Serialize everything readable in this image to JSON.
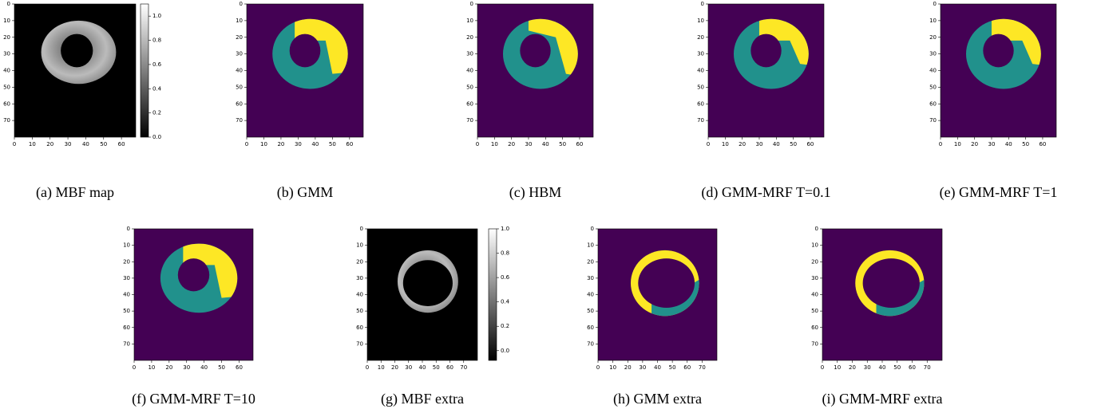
{
  "panels": [
    {
      "caption": "(a) MBF map",
      "xticks": [
        "0",
        "10",
        "20",
        "30",
        "40",
        "50",
        "60"
      ],
      "yticks": [
        "0",
        "10",
        "20",
        "30",
        "40",
        "50",
        "60",
        "70"
      ],
      "colorbar": [
        "0.0",
        "0.2",
        "0.4",
        "0.6",
        "0.8",
        "1.0"
      ]
    },
    {
      "caption": "(b) GMM",
      "xticks": [
        "0",
        "10",
        "20",
        "30",
        "40",
        "50",
        "60"
      ],
      "yticks": [
        "0",
        "10",
        "20",
        "30",
        "40",
        "50",
        "60",
        "70"
      ]
    },
    {
      "caption": "(c) HBM",
      "xticks": [
        "0",
        "10",
        "20",
        "30",
        "40",
        "50",
        "60"
      ],
      "yticks": [
        "0",
        "10",
        "20",
        "30",
        "40",
        "50",
        "60",
        "70"
      ]
    },
    {
      "caption": "(d) GMM-MRF T=0.1",
      "xticks": [
        "0",
        "10",
        "20",
        "30",
        "40",
        "50",
        "60"
      ],
      "yticks": [
        "0",
        "10",
        "20",
        "30",
        "40",
        "50",
        "60",
        "70"
      ]
    },
    {
      "caption": "(e) GMM-MRF T=1",
      "xticks": [
        "0",
        "10",
        "20",
        "30",
        "40",
        "50",
        "60"
      ],
      "yticks": [
        "0",
        "10",
        "20",
        "30",
        "40",
        "50",
        "60",
        "70"
      ]
    },
    {
      "caption": "(f) GMM-MRF T=10",
      "xticks": [
        "0",
        "10",
        "20",
        "30",
        "40",
        "50",
        "60"
      ],
      "yticks": [
        "0",
        "10",
        "20",
        "30",
        "40",
        "50",
        "60",
        "70"
      ]
    },
    {
      "caption": "(g) MBF extra",
      "xticks": [
        "0",
        "10",
        "20",
        "30",
        "40",
        "50",
        "60",
        "70"
      ],
      "yticks": [
        "0",
        "10",
        "20",
        "30",
        "40",
        "50",
        "60",
        "70"
      ],
      "colorbar": [
        "0.0",
        "0.2",
        "0.4",
        "0.6",
        "0.8",
        "1.0"
      ]
    },
    {
      "caption": "(h) GMM extra",
      "xticks": [
        "0",
        "10",
        "20",
        "30",
        "40",
        "50",
        "60",
        "70"
      ],
      "yticks": [
        "0",
        "10",
        "20",
        "30",
        "40",
        "50",
        "60",
        "70"
      ]
    },
    {
      "caption": "(i) GMM-MRF extra",
      "xticks": [
        "0",
        "10",
        "20",
        "30",
        "40",
        "50",
        "60",
        "70"
      ],
      "yticks": [
        "0",
        "10",
        "20",
        "30",
        "40",
        "50",
        "60",
        "70"
      ]
    }
  ]
}
